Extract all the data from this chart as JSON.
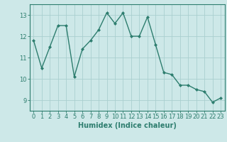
{
  "x": [
    0,
    1,
    2,
    3,
    4,
    5,
    6,
    7,
    8,
    9,
    10,
    11,
    12,
    13,
    14,
    15,
    16,
    17,
    18,
    19,
    20,
    21,
    22,
    23
  ],
  "y": [
    11.8,
    10.5,
    11.5,
    12.5,
    12.5,
    10.1,
    11.4,
    11.8,
    12.3,
    13.1,
    12.6,
    13.1,
    12.0,
    12.0,
    12.9,
    11.6,
    10.3,
    10.2,
    9.7,
    9.7,
    9.5,
    9.4,
    8.9,
    9.1
  ],
  "line_color": "#2d7d6e",
  "marker": "D",
  "marker_size": 2,
  "bg_color": "#cde8e8",
  "grid_color": "#aacfcf",
  "xlabel": "Humidex (Indice chaleur)",
  "ylim": [
    8.5,
    13.5
  ],
  "xlim": [
    -0.5,
    23.5
  ],
  "yticks": [
    9,
    10,
    11,
    12,
    13
  ],
  "xticks": [
    0,
    1,
    2,
    3,
    4,
    5,
    6,
    7,
    8,
    9,
    10,
    11,
    12,
    13,
    14,
    15,
    16,
    17,
    18,
    19,
    20,
    21,
    22,
    23
  ],
  "tick_color": "#2d7d6e",
  "tick_fontsize": 6,
  "xlabel_fontsize": 7,
  "axis_color": "#2d7d6e",
  "line_width": 1.0
}
